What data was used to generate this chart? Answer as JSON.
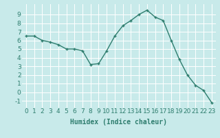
{
  "x": [
    0,
    1,
    2,
    3,
    4,
    5,
    6,
    7,
    8,
    9,
    10,
    11,
    12,
    13,
    14,
    15,
    16,
    17,
    18,
    19,
    20,
    21,
    22,
    23
  ],
  "y": [
    6.5,
    6.5,
    6.0,
    5.8,
    5.5,
    5.0,
    5.0,
    4.8,
    3.2,
    3.3,
    4.8,
    6.5,
    7.7,
    8.3,
    9.0,
    9.5,
    8.7,
    8.3,
    6.0,
    3.8,
    2.0,
    0.8,
    0.2,
    -1.2
  ],
  "xlabel": "Humidex (Indice chaleur)",
  "xlim": [
    -0.5,
    23.5
  ],
  "ylim": [
    -1.8,
    10.2
  ],
  "yticks": [
    -1,
    0,
    1,
    2,
    3,
    4,
    5,
    6,
    7,
    8,
    9
  ],
  "xticks": [
    0,
    1,
    2,
    3,
    4,
    5,
    6,
    7,
    8,
    9,
    10,
    11,
    12,
    13,
    14,
    15,
    16,
    17,
    18,
    19,
    20,
    21,
    22,
    23
  ],
  "line_color": "#2e7d6e",
  "marker": "+",
  "bg_color": "#c8eaea",
  "grid_color": "#b8d8d8",
  "xlabel_fontsize": 7,
  "tick_fontsize": 6.5
}
